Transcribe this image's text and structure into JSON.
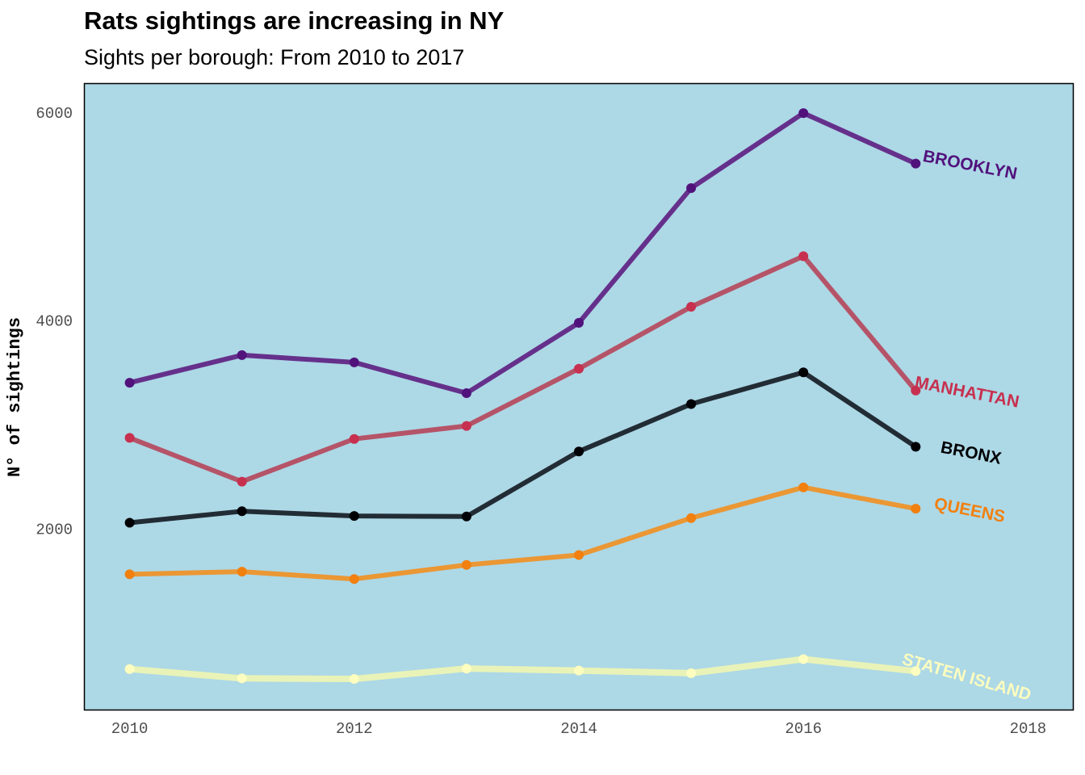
{
  "chart_data": {
    "type": "line",
    "title": "Rats sightings are increasing in NY",
    "subtitle": "Sights per borough: From 2010 to 2017",
    "xlabel": "",
    "ylabel": "N° of sightings",
    "xlim": [
      2009.6,
      2018.4
    ],
    "ylim": [
      260,
      6270
    ],
    "x_ticks": [
      2010,
      2012,
      2014,
      2016,
      2018
    ],
    "y_ticks": [
      2000,
      4000,
      6000
    ],
    "grid": false,
    "legend": "none",
    "panel_background": "#add8e6",
    "x": [
      2010,
      2011,
      2012,
      2013,
      2014,
      2015,
      2016,
      2017
    ],
    "series": [
      {
        "name": "STATEN ISLAND",
        "line_color": "#e9f3b8",
        "point_color": "#fcfdbf",
        "values": [
          650,
          560,
          555,
          655,
          635,
          610,
          745,
          630
        ]
      },
      {
        "name": "QUEENS",
        "line_color": "#ea9734",
        "point_color": "#f1800f",
        "values": [
          1560,
          1585,
          1515,
          1650,
          1745,
          2100,
          2395,
          2190
        ]
      },
      {
        "name": "BRONX",
        "line_color": "#222c35",
        "point_color": "#000004",
        "values": [
          2055,
          2165,
          2120,
          2115,
          2740,
          3195,
          3500,
          2785
        ]
      },
      {
        "name": "MANHATTAN",
        "line_color": "#b55468",
        "point_color": "#c7304f",
        "values": [
          2870,
          2450,
          2860,
          2985,
          3535,
          4130,
          4615,
          3325
        ]
      },
      {
        "name": "BROOKLYN",
        "line_color": "#65308b",
        "point_color": "#51127c",
        "values": [
          3400,
          3665,
          3595,
          3300,
          3975,
          5270,
          5990,
          5505
        ]
      }
    ]
  }
}
